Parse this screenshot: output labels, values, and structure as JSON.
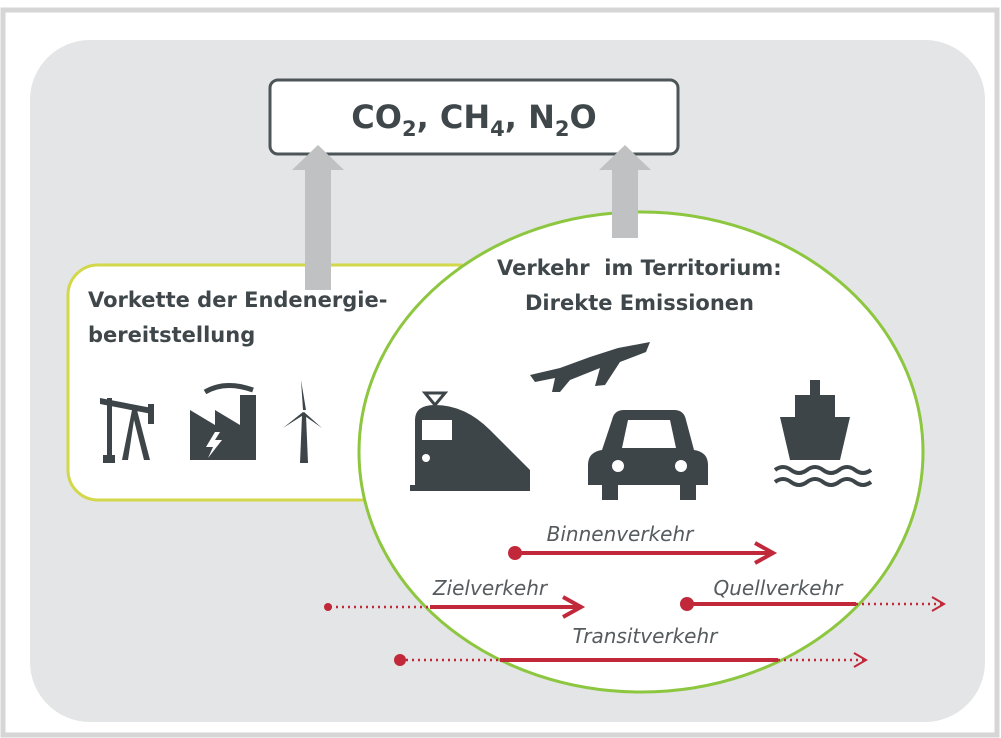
{
  "emissions_box": {
    "formula": [
      "CO",
      "2",
      ", CH",
      "4",
      ", N",
      "2",
      "O"
    ]
  },
  "upstream": {
    "lines": [
      "Vorkette der Endenergie-",
      "bereitstellung"
    ]
  },
  "territory": {
    "lines": [
      "Verkehr  im Territorium:",
      "Direkte Emissionen"
    ]
  },
  "flows": {
    "inland": "Binnenverkehr",
    "destination": "Zielverkehr",
    "origin": "Quellverkehr",
    "transit": "Transitverkehr"
  }
}
